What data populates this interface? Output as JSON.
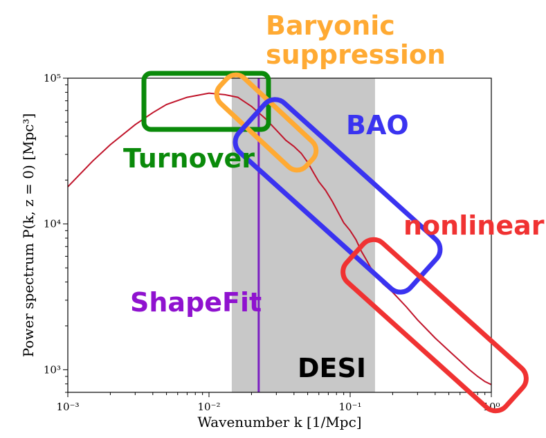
{
  "chart_data": {
    "type": "line",
    "xlabel": "Wavenumber k [1/Mpc]",
    "ylabel": "Power spectrum P(k, z = 0) [Mpc³]",
    "x_scale": "log",
    "y_scale": "log",
    "xlim": [
      0.001,
      1
    ],
    "ylim": [
      700,
      100000
    ],
    "x_ticks": [
      {
        "value": 0.001,
        "label": "10⁻³"
      },
      {
        "value": 0.01,
        "label": "10⁻²"
      },
      {
        "value": 0.1,
        "label": "10⁻¹"
      },
      {
        "value": 1,
        "label": "10⁰"
      }
    ],
    "y_ticks": [
      {
        "value": 1000,
        "label": "10³"
      },
      {
        "value": 10000,
        "label": "10⁴"
      },
      {
        "value": 100000,
        "label": "10⁵"
      }
    ],
    "series": [
      {
        "color": "#c0142a",
        "x": [
          0.001,
          0.0015,
          0.002,
          0.003,
          0.004,
          0.005,
          0.007,
          0.01,
          0.013,
          0.016,
          0.02,
          0.025,
          0.03,
          0.035,
          0.04,
          0.045,
          0.05,
          0.055,
          0.06,
          0.067,
          0.075,
          0.083,
          0.09,
          0.1,
          0.11,
          0.12,
          0.13,
          0.14,
          0.15,
          0.17,
          0.2,
          0.25,
          0.3,
          0.4,
          0.5,
          0.6,
          0.7,
          0.8,
          0.9,
          1.0
        ],
        "y": [
          18000,
          27000,
          35000,
          48000,
          58000,
          66000,
          74000,
          79000,
          77000,
          74000,
          64000,
          53000,
          44000,
          37500,
          34000,
          30500,
          26500,
          22500,
          19500,
          17000,
          14200,
          11800,
          10200,
          9000,
          7800,
          6500,
          5700,
          5000,
          4600,
          3900,
          3400,
          2700,
          2200,
          1650,
          1350,
          1150,
          1000,
          900,
          830,
          790
        ]
      }
    ],
    "regions": [
      {
        "name": "DESI",
        "x_range": [
          0.0145,
          0.15
        ],
        "color": "#c8c8c8"
      }
    ],
    "vlines": [
      {
        "name": "ShapeFit",
        "x": 0.0225,
        "color": "#7b1fc2"
      }
    ],
    "annotations": [
      {
        "text": "Baryonic\nsuppression",
        "color": "#ffaa33"
      },
      {
        "text": "BAO",
        "color": "#3a33f0"
      },
      {
        "text": "Turnover",
        "color": "#0a8a0a"
      },
      {
        "text": "nonlinear",
        "color": "#f03232"
      },
      {
        "text": "ShapeFit",
        "color": "#8f12cf"
      },
      {
        "text": "DESI",
        "color": "#000000"
      }
    ]
  }
}
